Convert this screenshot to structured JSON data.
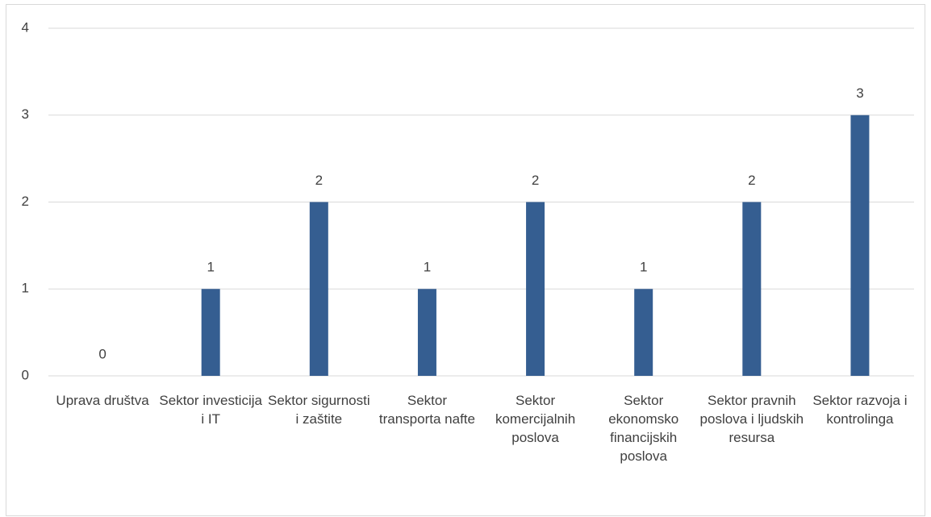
{
  "chart_data": {
    "type": "bar",
    "categories": [
      "Uprava društva",
      "Sektor investicija i IT",
      "Sektor sigurnosti i zaštite",
      "Sektor transporta nafte",
      "Sektor komercijalnih poslova",
      "Sektor ekonomsko financijskih poslova",
      "Sektor pravnih poslova i ljudskih resursa",
      "Sektor razvoja i kontrolinga"
    ],
    "values": [
      0,
      1,
      2,
      1,
      2,
      1,
      2,
      3
    ],
    "color": "#355e91",
    "ylim": [
      0,
      4
    ],
    "yticks": [
      0,
      1,
      2,
      3,
      4
    ],
    "grid": true
  }
}
